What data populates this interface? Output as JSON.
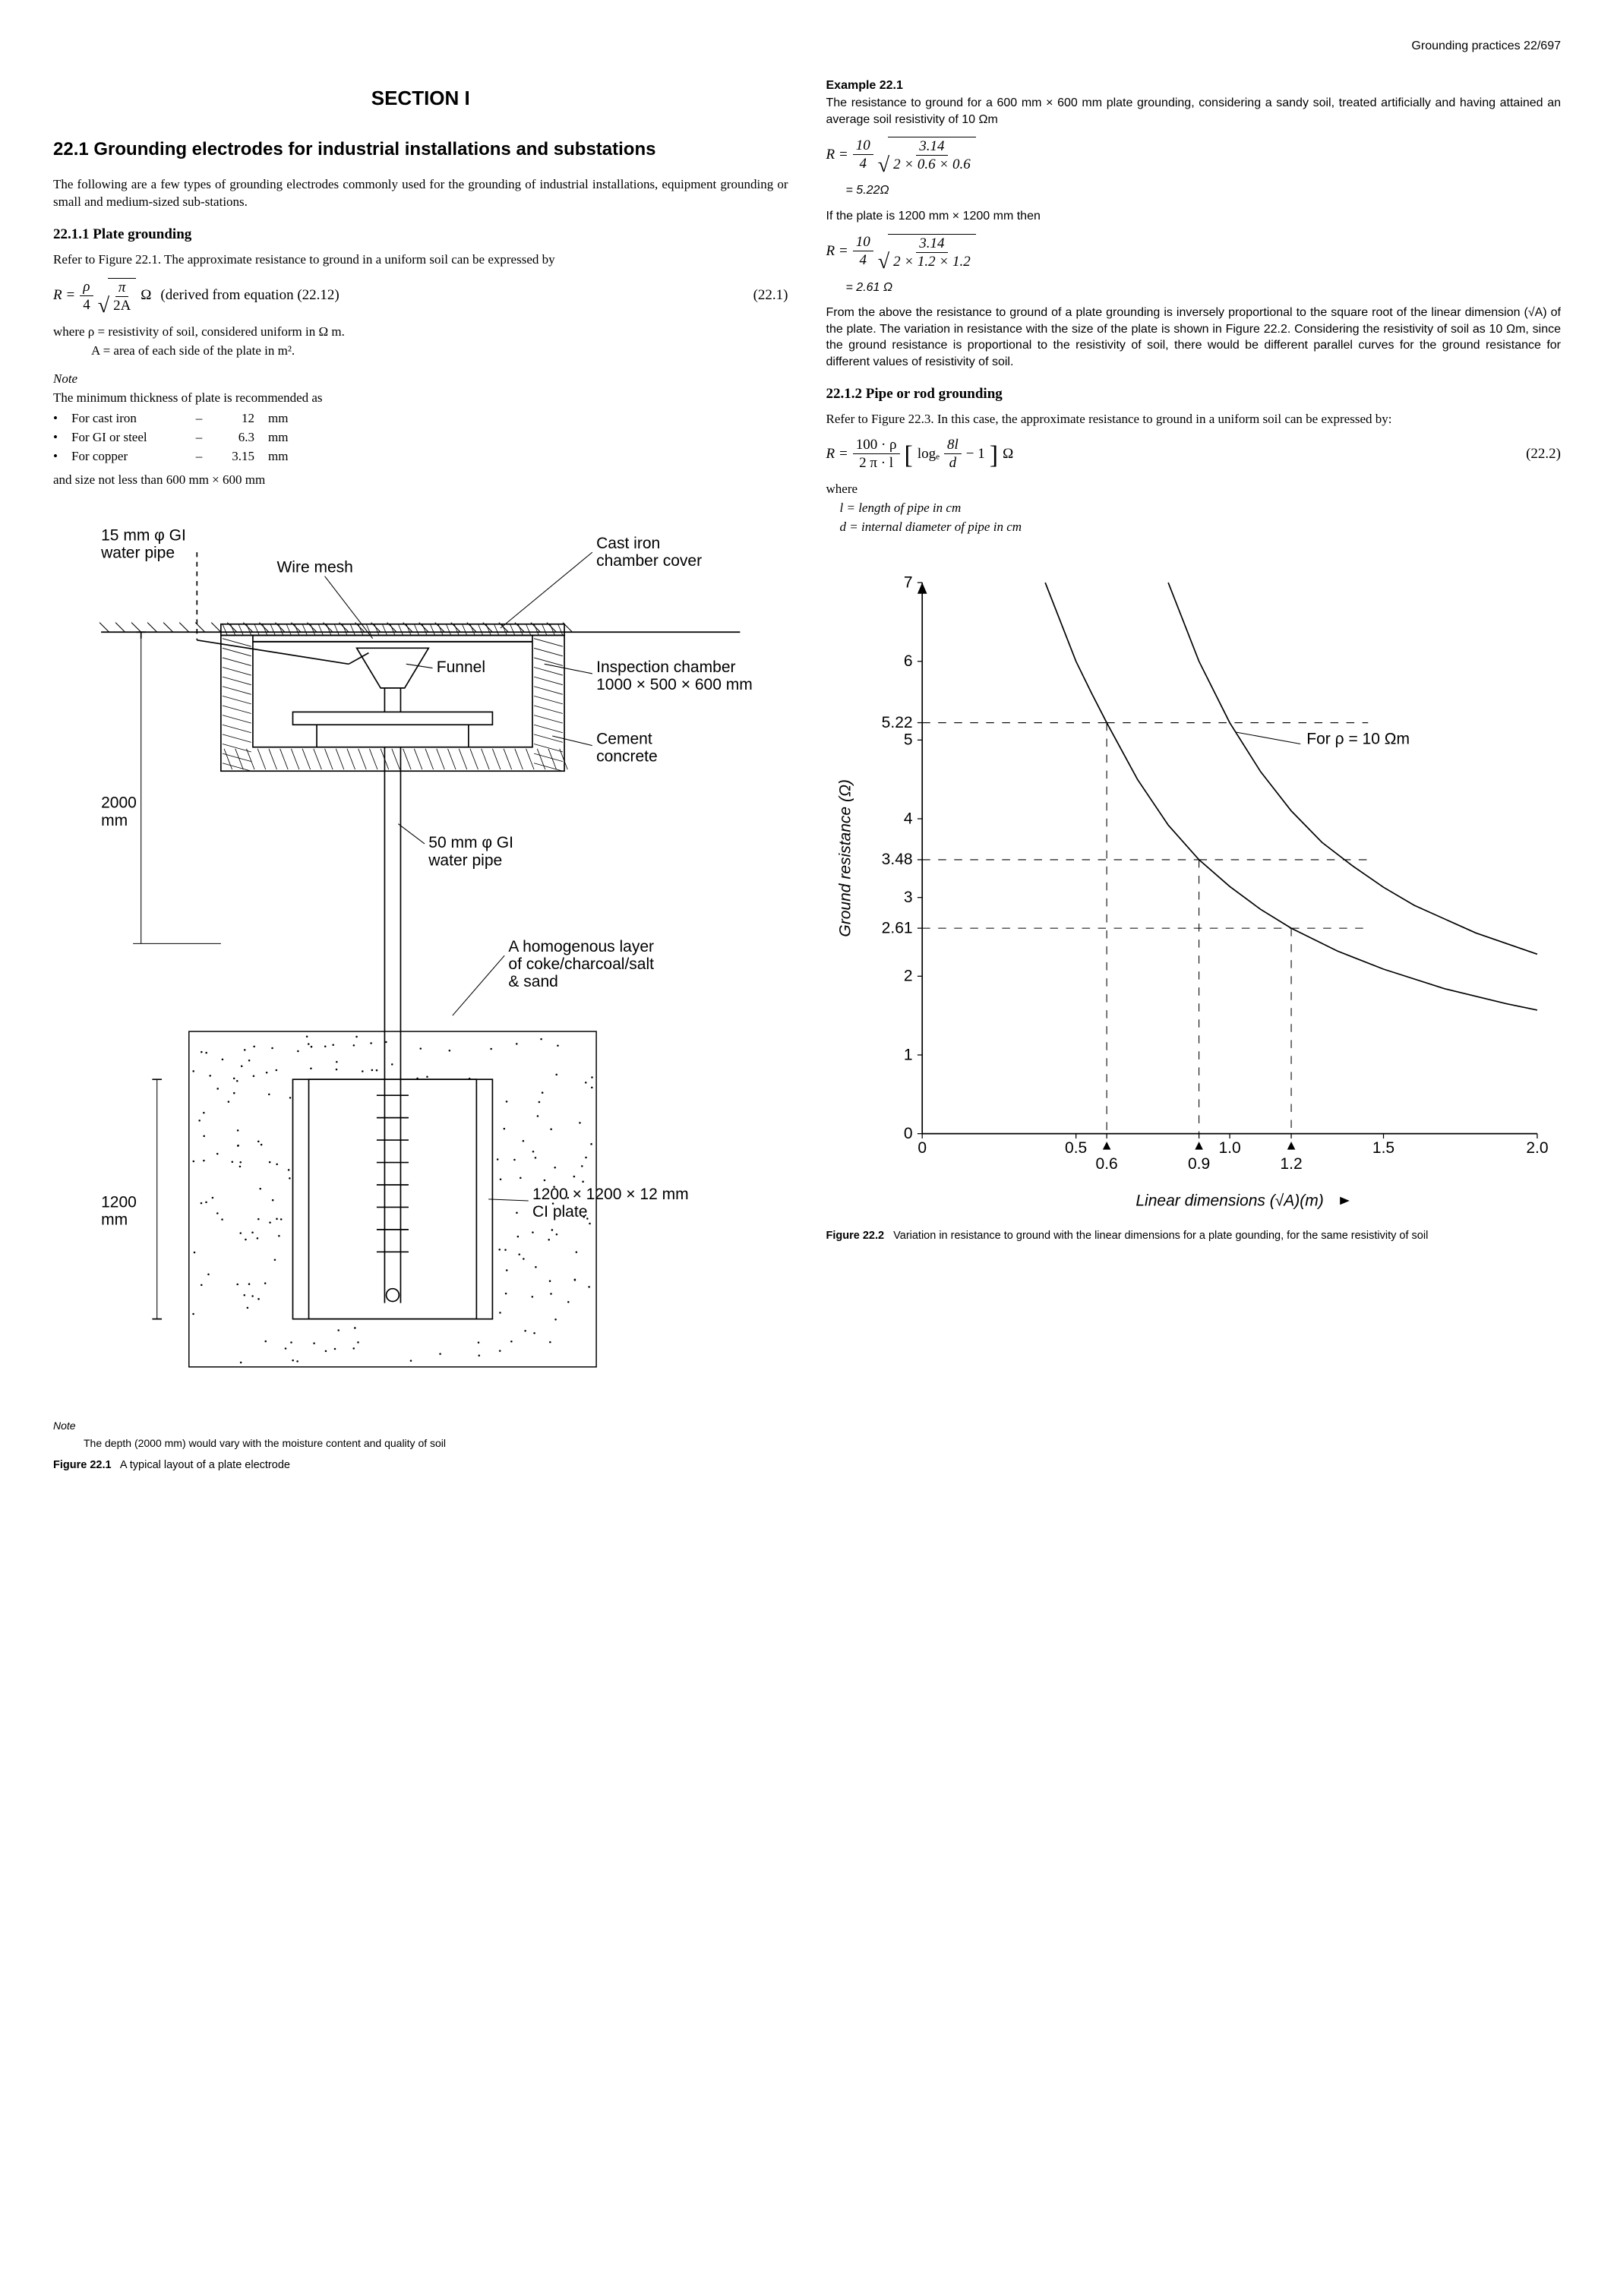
{
  "header": {
    "text": "Grounding practices 22/697"
  },
  "left": {
    "section_label": "SECTION I",
    "heading": "22.1 Grounding electrodes for industrial installations and substations",
    "intro": "The following are a few types of grounding electrodes commonly used for the grounding of industrial installations, equipment grounding or small and medium-sized sub-stations.",
    "sub1": "22.1.1 Plate grounding",
    "sub1_p1": "Refer to Figure 22.1. The approximate resistance to ground in a uniform soil can be expressed by",
    "eq1": {
      "lhs": "R =",
      "rho": "ρ",
      "over4": "4",
      "pi": "π",
      "twoA": "2A",
      "unit": "Ω",
      "derived": "(derived from equation (22.12)",
      "num": "(22.1)"
    },
    "where1": "where  ρ = resistivity of soil, considered uniform in Ω m.",
    "where2": "A = area of each side of the plate in m².",
    "note_label": "Note",
    "note_line": "The minimum thickness of plate is recommended as",
    "thick": [
      {
        "mat": "For cast iron",
        "val": "12",
        "unit": "mm"
      },
      {
        "mat": "For GI or steel",
        "val": "6.3",
        "unit": "mm"
      },
      {
        "mat": "For copper",
        "val": "3.15",
        "unit": "mm"
      }
    ],
    "size_line": "and size not less than 600 mm × 600 mm",
    "fig1": {
      "labels": {
        "gi_pipe_top": "15 mm φ GI\nwater pipe",
        "wire_mesh": "Wire mesh",
        "cover": "Cast iron\nchamber cover",
        "funnel": "Funnel",
        "inspection": "Inspection chamber\n1000 × 500 × 600 mm",
        "cement": "Cement\nconcrete",
        "depth2000": "2000\nmm",
        "pipe50": "50 mm φ GI\nwater pipe",
        "layer": "A homogenous layer\nof coke/charcoal/salt\n& sand",
        "ci_plate": "1200 × 1200 × 12 mm\nCI plate",
        "depth1200": "1200\nmm"
      },
      "note_label": "Note",
      "note": "The depth (2000 mm) would vary with the moisture content and quality of soil",
      "caption_bold": "Figure 22.1",
      "caption": "A typical layout of a plate electrode"
    }
  },
  "right": {
    "ex_title": "Example 22.1",
    "ex_p1": "The resistance to ground for a 600 mm × 600 mm plate grounding, considering a sandy soil, treated artificially and having attained an average soil resistivity of 10 Ωm",
    "ex_eq1": {
      "lhs": "R =",
      "n1": "10",
      "d1": "4",
      "n2": "3.14",
      "d2": "2 × 0.6 × 0.6",
      "res": "= 5.22Ω"
    },
    "ex_mid": "If the plate is 1200 mm × 1200 mm then",
    "ex_eq2": {
      "lhs": "R =",
      "n1": "10",
      "d1": "4",
      "n2": "3.14",
      "d2": "2 × 1.2 × 1.2",
      "res": "= 2.61 Ω"
    },
    "ex_p2": "From the above the resistance to ground of a plate grounding is inversely proportional to the square root of the linear dimension (√A) of the plate. The variation in resistance with the size of the plate is shown in Figure 22.2. Considering the resistivity of soil as 10 Ωm, since the ground resistance is proportional to the resistivity of soil, there would be different parallel curves for the ground resistance for different values of resistivity of soil.",
    "sub2": "22.1.2 Pipe or rod grounding",
    "sub2_p1": "Refer to Figure 22.3. In this case, the approximate resistance to ground in a uniform soil can be expressed by:",
    "eq2": {
      "lhs": "R =",
      "num_top": "100 · ρ",
      "num_bot": "2 π · l",
      "log": "logₑ",
      "inner_top": "8l",
      "inner_bot": "d",
      "minus": "− 1",
      "unit": "Ω",
      "num": "(22.2)"
    },
    "where_lbl": "where",
    "where_l": "l = length of pipe in cm",
    "where_d": "d = internal diameter of pipe in cm",
    "fig2": {
      "ylabel": "Ground resistance (Ω)",
      "xlabel": "Linear dimensions (√A)(m)",
      "curve_label": "For ρ = 10 Ωm",
      "xticks": [
        {
          "v": 0,
          "l": "0"
        },
        {
          "v": 0.5,
          "l": "0.5"
        },
        {
          "v": 0.6,
          "l": "0.6"
        },
        {
          "v": 0.9,
          "l": "0.9"
        },
        {
          "v": 1.0,
          "l": "1.0"
        },
        {
          "v": 1.2,
          "l": "1.2"
        },
        {
          "v": 1.5,
          "l": "1.5"
        },
        {
          "v": 2.0,
          "l": "2.0"
        }
      ],
      "yticks": [
        {
          "v": 0,
          "l": "0"
        },
        {
          "v": 1,
          "l": "1"
        },
        {
          "v": 2,
          "l": "2"
        },
        {
          "v": 2.61,
          "l": "2.61"
        },
        {
          "v": 3,
          "l": "3"
        },
        {
          "v": 3.48,
          "l": "3.48"
        },
        {
          "v": 4,
          "l": "4"
        },
        {
          "v": 5,
          "l": "5"
        },
        {
          "v": 5.22,
          "l": "5.22"
        },
        {
          "v": 6,
          "l": "6"
        },
        {
          "v": 7,
          "l": "7"
        }
      ],
      "xlim": [
        0,
        2.0
      ],
      "ylim": [
        0,
        7
      ],
      "guide_lines": [
        {
          "x": 0.6,
          "y": 5.22
        },
        {
          "x": 0.9,
          "y": 3.48
        },
        {
          "x": 1.2,
          "y": 2.61
        }
      ],
      "curves": [
        {
          "pts": [
            [
              0.4,
              7.0
            ],
            [
              0.45,
              6.5
            ],
            [
              0.5,
              6.0
            ],
            [
              0.55,
              5.6
            ],
            [
              0.6,
              5.22
            ],
            [
              0.7,
              4.5
            ],
            [
              0.8,
              3.92
            ],
            [
              0.9,
              3.48
            ],
            [
              1.0,
              3.14
            ],
            [
              1.1,
              2.85
            ],
            [
              1.2,
              2.61
            ],
            [
              1.35,
              2.32
            ],
            [
              1.5,
              2.09
            ],
            [
              1.7,
              1.84
            ],
            [
              1.9,
              1.65
            ],
            [
              2.0,
              1.57
            ]
          ]
        },
        {
          "pts": [
            [
              0.8,
              7.0
            ],
            [
              0.9,
              6.0
            ],
            [
              1.0,
              5.22
            ],
            [
              1.1,
              4.6
            ],
            [
              1.2,
              4.1
            ],
            [
              1.3,
              3.7
            ],
            [
              1.4,
              3.4
            ],
            [
              1.5,
              3.13
            ],
            [
              1.6,
              2.9
            ],
            [
              1.8,
              2.55
            ],
            [
              2.0,
              2.28
            ]
          ]
        }
      ],
      "caption_bold": "Figure 22.2",
      "caption": "Variation in resistance to ground with the linear dimensions for a plate gounding, for the same resistivity of soil",
      "axis_color": "#000000",
      "curve_color": "#000000",
      "dash_color": "#000000",
      "background": "#ffffff",
      "line_width_axis": 1.6,
      "line_width_curve": 1.6,
      "line_width_dash": 1.0
    }
  }
}
